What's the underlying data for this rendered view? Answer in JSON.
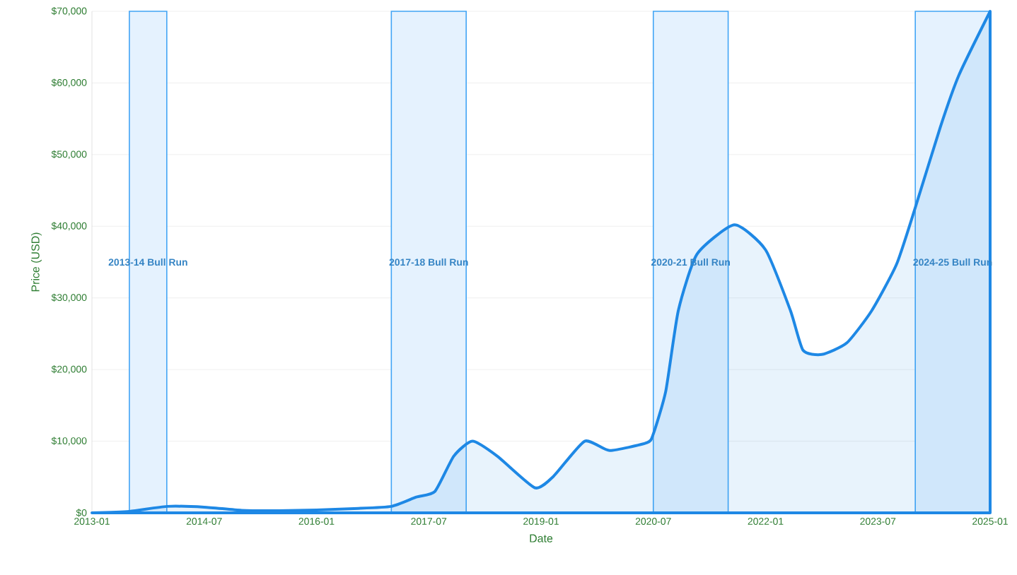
{
  "chart_data": {
    "type": "area",
    "xlabel": "Date",
    "ylabel": "Price (USD)",
    "color": "#1e88e5",
    "marker": "none",
    "grid": "y",
    "x": [
      "2013-01",
      "2013-07",
      "2014-01",
      "2014-07",
      "2015-01",
      "2015-07",
      "2016-01",
      "2016-07",
      "2017-01",
      "2017-05",
      "2017-08",
      "2017-11",
      "2018-02",
      "2018-06",
      "2018-12",
      "2019-03",
      "2019-08",
      "2019-12",
      "2020-06",
      "2020-07",
      "2020-09",
      "2020-11",
      "2021-02",
      "2021-08",
      "2022-01",
      "2022-05",
      "2022-07",
      "2022-10",
      "2023-02",
      "2023-06",
      "2023-10",
      "2024-01",
      "2024-05",
      "2024-08",
      "2025-01"
    ],
    "values": [
      0,
      200,
      900,
      800,
      350,
      300,
      400,
      600,
      900,
      2200,
      3000,
      7900,
      10000,
      7900,
      3500,
      5100,
      10000,
      8700,
      9800,
      11000,
      17000,
      28200,
      36100,
      40200,
      36700,
      28200,
      22700,
      22100,
      23700,
      28200,
      34700,
      42600,
      53800,
      61100,
      70000
    ],
    "xlim": [
      "2013-01",
      "2025-01"
    ],
    "xticks": [
      "2013-01",
      "2014-07",
      "2016-01",
      "2017-07",
      "2019-01",
      "2020-07",
      "2022-01",
      "2023-07",
      "2025-01"
    ],
    "ylim": [
      0,
      70000
    ],
    "yticks": [
      {
        "value": 0,
        "label": "$0"
      },
      {
        "value": 10000,
        "label": "$10,000"
      },
      {
        "value": 20000,
        "label": "$20,000"
      },
      {
        "value": 30000,
        "label": "$30,000"
      },
      {
        "value": 40000,
        "label": "$40,000"
      },
      {
        "value": 50000,
        "label": "$50,000"
      },
      {
        "value": 60000,
        "label": "$60,000"
      },
      {
        "value": 70000,
        "label": "$70,000"
      }
    ],
    "bands": [
      {
        "axis": "x",
        "from": "2013-07",
        "to": "2014-01",
        "label": "2013-14 Bull Run",
        "color": "#42a5f5"
      },
      {
        "axis": "x",
        "from": "2017-01",
        "to": "2018-01",
        "label": "2017-18 Bull Run",
        "color": "#42a5f5"
      },
      {
        "axis": "x",
        "from": "2020-07",
        "to": "2021-07",
        "label": "2020-21 Bull Run",
        "color": "#42a5f5"
      },
      {
        "axis": "x",
        "from": "2024-01",
        "to": "2025-01",
        "label": "2024-25 Bull Run",
        "color": "#42a5f5"
      }
    ]
  }
}
